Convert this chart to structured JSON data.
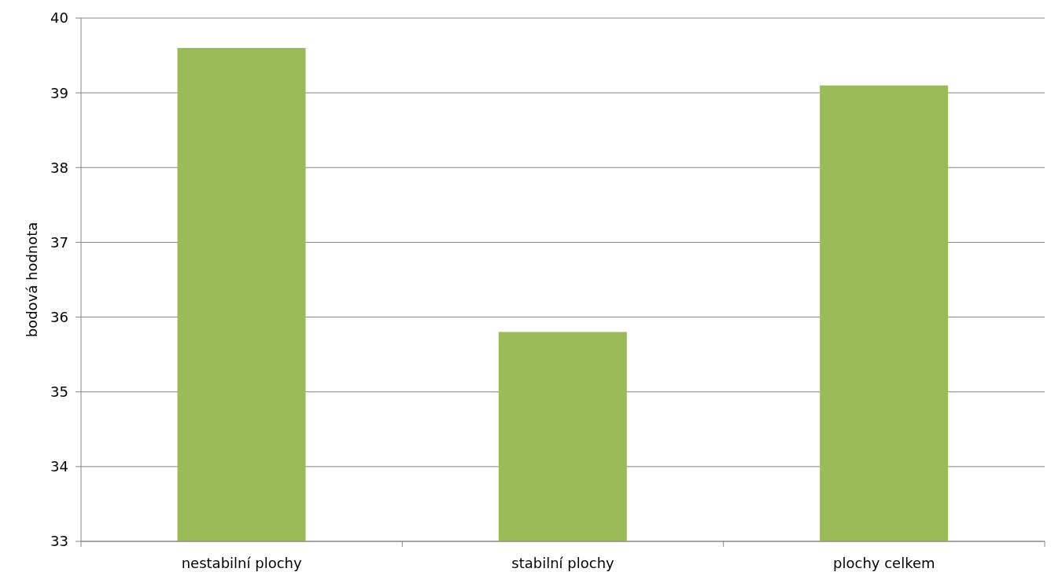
{
  "chart_data": {
    "type": "bar",
    "ylabel": "bodová hodnota",
    "categories": [
      "nestabilní plochy",
      "stabilní plochy",
      "plochy celkem"
    ],
    "values": [
      39.6,
      35.8,
      39.1
    ],
    "color": "#9bbb59",
    "ylim": [
      33,
      40
    ],
    "yticks": [
      33,
      34,
      35,
      36,
      37,
      38,
      39,
      40
    ],
    "grid": "y"
  }
}
